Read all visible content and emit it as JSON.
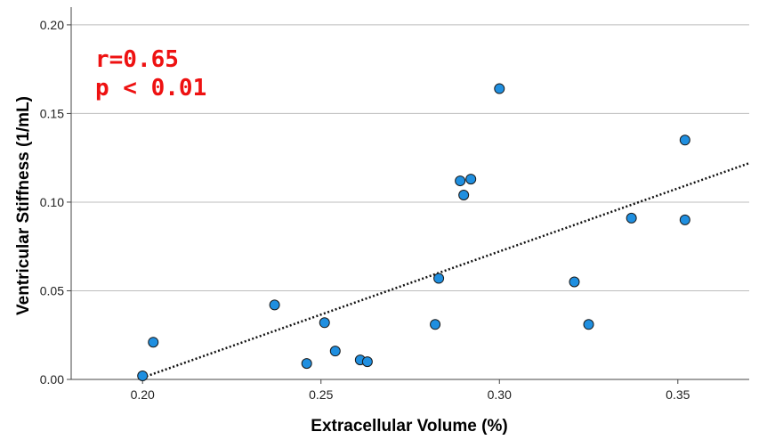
{
  "chart_data": {
    "type": "scatter",
    "xlabel": "Extracellular Volume (%)",
    "ylabel": "Ventricular Stiffness (1/mL)",
    "xlim": [
      0.18,
      0.37
    ],
    "ylim": [
      0.0,
      0.21
    ],
    "x_ticks": [
      0.2,
      0.25,
      0.3,
      0.35
    ],
    "x_tick_labels": [
      "0.20",
      "0.25",
      "0.30",
      "0.35"
    ],
    "y_ticks": [
      0.0,
      0.05,
      0.1,
      0.15,
      0.2
    ],
    "y_tick_labels": [
      "0.00",
      "0.05",
      "0.10",
      "0.15",
      "0.20"
    ],
    "grid": "horizontal",
    "annotations": [
      "r=0.65",
      "p < 0.01"
    ],
    "points": [
      {
        "x": 0.2,
        "y": 0.002
      },
      {
        "x": 0.203,
        "y": 0.021
      },
      {
        "x": 0.237,
        "y": 0.042
      },
      {
        "x": 0.246,
        "y": 0.009
      },
      {
        "x": 0.251,
        "y": 0.032
      },
      {
        "x": 0.254,
        "y": 0.016
      },
      {
        "x": 0.261,
        "y": 0.011
      },
      {
        "x": 0.263,
        "y": 0.01
      },
      {
        "x": 0.282,
        "y": 0.031
      },
      {
        "x": 0.283,
        "y": 0.057
      },
      {
        "x": 0.289,
        "y": 0.112
      },
      {
        "x": 0.29,
        "y": 0.104
      },
      {
        "x": 0.292,
        "y": 0.113
      },
      {
        "x": 0.3,
        "y": 0.164
      },
      {
        "x": 0.321,
        "y": 0.055
      },
      {
        "x": 0.325,
        "y": 0.031
      },
      {
        "x": 0.337,
        "y": 0.091
      },
      {
        "x": 0.352,
        "y": 0.135
      },
      {
        "x": 0.352,
        "y": 0.09
      }
    ],
    "trendline": {
      "style": "dotted",
      "x": [
        0.2,
        0.37
      ],
      "y": [
        0.001,
        0.122
      ]
    },
    "colors": {
      "point_fill": "#1f8fe0",
      "point_stroke": "#1a1a1a",
      "annotation": "#ee1111",
      "grid": "#bdbdbd"
    }
  }
}
